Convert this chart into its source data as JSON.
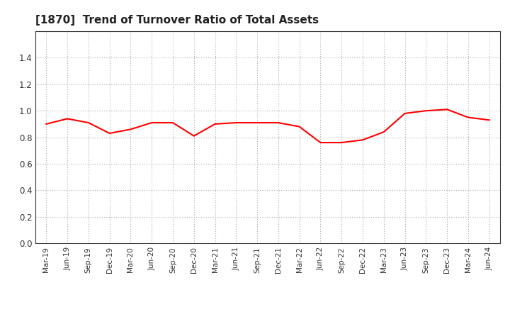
{
  "title": "[1870]  Trend of Turnover Ratio of Total Assets",
  "line_color": "#FF0000",
  "line_width": 1.5,
  "background_color": "#FFFFFF",
  "grid_color": "#AAAAAA",
  "ylim": [
    0.0,
    1.6
  ],
  "yticks": [
    0.0,
    0.2,
    0.4,
    0.6,
    0.8,
    1.0,
    1.2,
    1.4
  ],
  "x_labels": [
    "Mar-19",
    "Jun-19",
    "Sep-19",
    "Dec-19",
    "Mar-20",
    "Jun-20",
    "Sep-20",
    "Dec-20",
    "Mar-21",
    "Jun-21",
    "Sep-21",
    "Dec-21",
    "Mar-22",
    "Jun-22",
    "Sep-22",
    "Dec-22",
    "Mar-23",
    "Jun-23",
    "Sep-23",
    "Dec-23",
    "Mar-24",
    "Jun-24"
  ],
  "values": [
    0.9,
    0.94,
    0.91,
    0.83,
    0.86,
    0.91,
    0.91,
    0.81,
    0.9,
    0.91,
    0.91,
    0.91,
    0.88,
    0.76,
    0.76,
    0.78,
    0.84,
    0.98,
    1.0,
    1.01,
    0.95,
    0.93
  ]
}
